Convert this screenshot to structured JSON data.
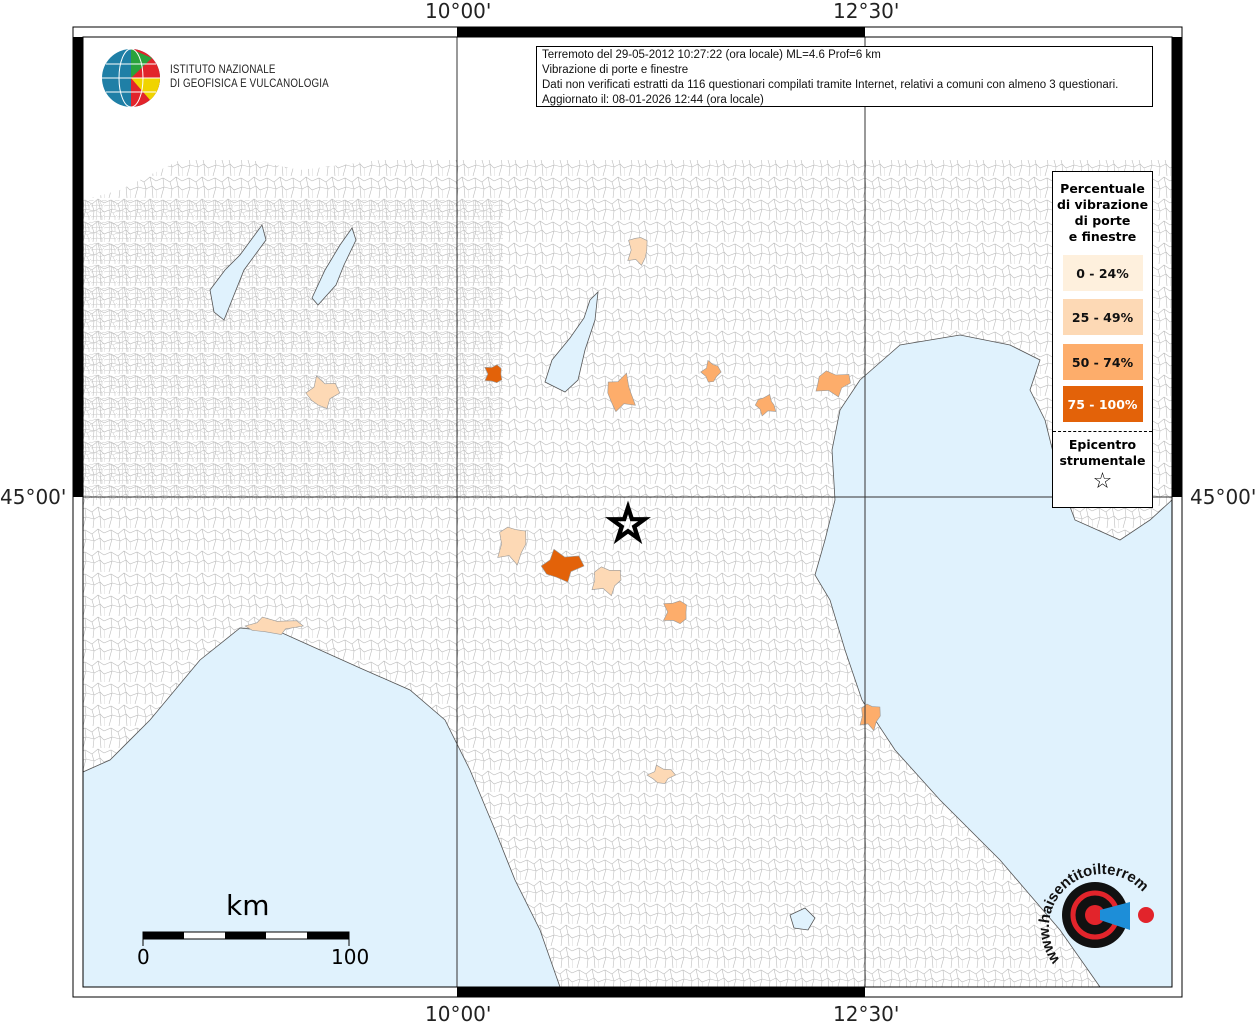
{
  "info": {
    "line1": "Terremoto del 29-05-2012 10:27:22 (ora locale) ML=4.6 Prof=6 km",
    "line2": "Vibrazione di porte e finestre",
    "line3": "Dati non verificati estratti da 116 questionari compilati tramite Internet, relativi a comuni con almeno 3 questionari.",
    "line4": "Aggiornato il: 08-01-2026 12:44 (ora locale)"
  },
  "coords": {
    "lon1": "10°00'",
    "lon2": "12°30'",
    "lat": "45°00'"
  },
  "legend": {
    "title_lines": [
      "Percentuale",
      "di vibrazione",
      "di porte",
      "e finestre"
    ],
    "classes": [
      {
        "label": "0 - 24%",
        "color": "#fef0dd",
        "text_color": "#111111"
      },
      {
        "label": "25 - 49%",
        "color": "#fdd9b5",
        "text_color": "#111111"
      },
      {
        "label": "50 - 74%",
        "color": "#fdad6b",
        "text_color": "#111111"
      },
      {
        "label": "75 - 100%",
        "color": "#e36209",
        "text_color": "#ffffff"
      }
    ],
    "epicenter_lines": [
      "Epicentro",
      "strumentale"
    ],
    "epicenter_symbol": "☆"
  },
  "logos": {
    "ingv_line1": "ISTITUTO NAZIONALE",
    "ingv_line2": "DI GEOFISICA E VULCANOLOGIA",
    "hst": "www.haisentitoilterremoto.it"
  },
  "scale": {
    "unit": "km",
    "start": "0",
    "end": "100"
  },
  "colors": {
    "sea": "#e0f2fd",
    "land": "#ffffff",
    "borders": "#b8b8b8"
  }
}
